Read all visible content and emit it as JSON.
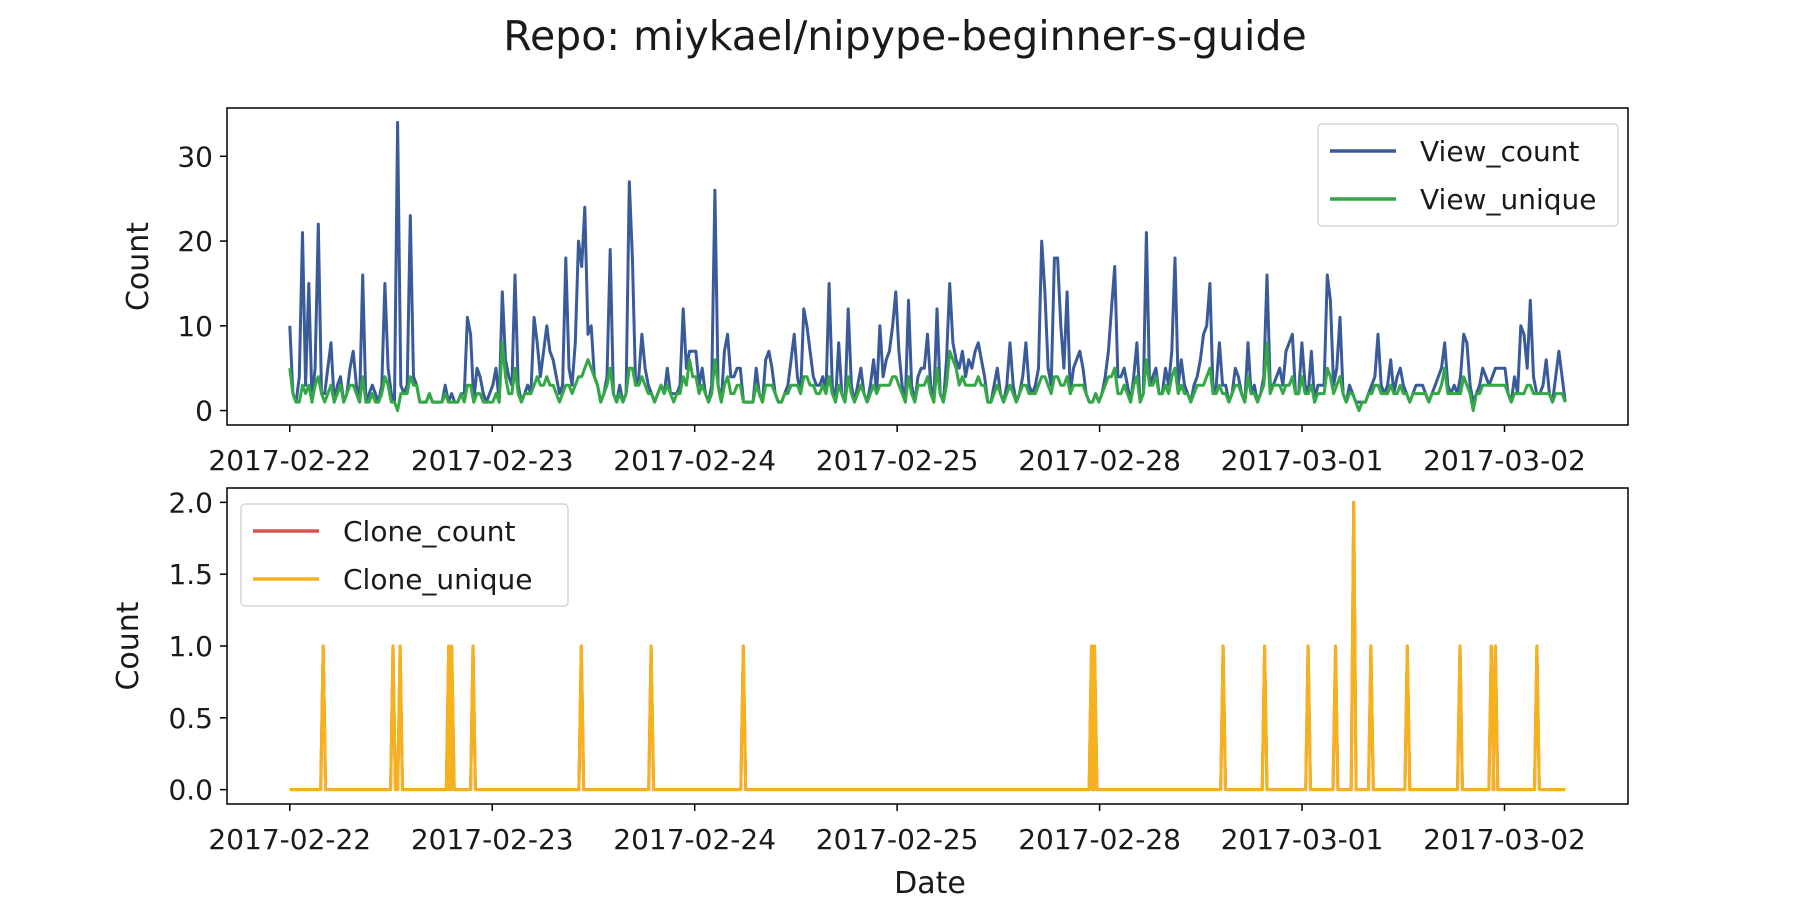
{
  "title": "Repo: miykael/nipype-beginner-s-guide",
  "x_axis": {
    "label": "Date",
    "tick_labels": [
      "2017-02-22",
      "2017-02-23",
      "2017-02-24",
      "2017-02-25",
      "2017-02-28",
      "2017-03-01",
      "2017-03-02"
    ]
  },
  "chart_data": [
    {
      "type": "line",
      "ylabel": "Count",
      "ylim": [
        -1.7,
        35.7
      ],
      "yticks": [
        0,
        10,
        20,
        30
      ],
      "ytick_labels": [
        "0",
        "10",
        "20",
        "30"
      ],
      "x_range": [
        0,
        6.3
      ],
      "xlim": [
        -0.31,
        6.61
      ],
      "legend_position": "upper right",
      "grid": false,
      "series": [
        {
          "name": "View_count",
          "color": "#3a5b9a",
          "values": [
            10,
            2,
            1,
            4,
            21,
            3,
            15,
            1,
            5,
            22,
            2,
            2,
            5,
            8,
            1,
            3,
            4,
            1,
            2,
            5,
            7,
            3,
            1,
            16,
            1,
            2,
            3,
            2,
            1,
            3,
            15,
            5,
            2,
            1,
            34,
            3,
            2,
            3,
            23,
            4,
            3,
            1,
            1,
            1,
            2,
            1,
            1,
            1,
            1,
            3,
            1,
            2,
            1,
            1,
            2,
            2,
            11,
            9,
            1,
            5,
            4,
            2,
            1,
            2,
            3,
            5,
            1,
            14,
            6,
            4,
            3,
            16,
            3,
            1,
            2,
            3,
            2,
            11,
            8,
            4,
            7,
            10,
            7,
            6,
            4,
            2,
            3,
            18,
            5,
            3,
            8,
            20,
            17,
            24,
            9,
            10,
            4,
            3,
            1,
            2,
            4,
            19,
            2,
            1,
            3,
            1,
            2,
            27,
            18,
            3,
            4,
            9,
            5,
            3,
            2,
            1,
            2,
            3,
            2,
            5,
            2,
            2,
            2,
            3,
            12,
            5,
            7,
            7,
            7,
            3,
            5,
            2,
            1,
            3,
            26,
            3,
            1,
            7,
            9,
            4,
            4,
            5,
            5,
            1,
            1,
            1,
            1,
            5,
            2,
            1,
            6,
            7,
            5,
            2,
            1,
            1,
            2,
            3,
            6,
            9,
            4,
            2,
            12,
            10,
            7,
            4,
            3,
            3,
            4,
            2,
            15,
            3,
            1,
            8,
            2,
            1,
            12,
            3,
            1,
            3,
            5,
            2,
            1,
            3,
            6,
            2,
            10,
            4,
            6,
            7,
            10,
            14,
            7,
            3,
            1,
            13,
            3,
            1,
            4,
            5,
            5,
            9,
            3,
            1,
            12,
            2,
            1,
            6,
            15,
            8,
            6,
            5,
            7,
            4,
            6,
            5,
            7,
            8,
            6,
            4,
            1,
            1,
            3,
            5,
            2,
            1,
            3,
            8,
            3,
            1,
            2,
            4,
            8,
            3,
            2,
            3,
            5,
            20,
            14,
            5,
            3,
            18,
            18,
            10,
            5,
            14,
            2,
            5,
            6,
            7,
            5,
            2,
            1,
            1,
            2,
            1,
            2,
            4,
            7,
            12,
            17,
            4,
            4,
            5,
            3,
            1,
            4,
            8,
            1,
            2,
            21,
            3,
            4,
            5,
            2,
            2,
            5,
            3,
            7,
            18,
            3,
            6,
            3,
            2,
            1,
            3,
            4,
            6,
            9,
            10,
            15,
            2,
            3,
            8,
            3,
            3,
            1,
            2,
            5,
            4,
            2,
            1,
            8,
            2,
            3,
            1,
            2,
            4,
            16,
            3,
            3,
            4,
            5,
            3,
            7,
            8,
            9,
            2,
            2,
            8,
            3,
            2,
            7,
            1,
            3,
            3,
            3,
            16,
            13,
            3,
            5,
            11,
            2,
            1,
            3,
            2,
            1,
            1,
            1,
            1,
            2,
            3,
            4,
            9,
            3,
            2,
            3,
            6,
            2,
            4,
            5,
            3,
            2,
            1,
            2,
            3,
            3,
            3,
            2,
            1,
            2,
            3,
            4,
            5,
            8,
            3,
            2,
            3,
            2,
            4,
            9,
            8,
            3,
            1,
            2,
            3,
            5,
            4,
            3,
            4,
            5,
            5,
            5,
            5,
            2,
            1,
            4,
            2,
            10,
            9,
            5,
            13,
            4,
            2,
            2,
            3,
            6,
            2,
            1,
            4,
            7,
            4,
            1
          ]
        },
        {
          "name": "View_unique",
          "color": "#33a845",
          "values": [
            5,
            2,
            1,
            1,
            3,
            2,
            3,
            1,
            3,
            4,
            2,
            1,
            2,
            3,
            1,
            2,
            3,
            1,
            2,
            3,
            3,
            2,
            1,
            4,
            1,
            1,
            2,
            1,
            1,
            2,
            4,
            3,
            1,
            1,
            0,
            2,
            2,
            2,
            4,
            3,
            3,
            1,
            1,
            1,
            2,
            1,
            1,
            1,
            1,
            2,
            1,
            1,
            1,
            1,
            2,
            1,
            3,
            3,
            1,
            2,
            2,
            1,
            1,
            1,
            1,
            2,
            1,
            8,
            4,
            2,
            2,
            5,
            2,
            1,
            2,
            2,
            2,
            3,
            4,
            3,
            3,
            4,
            3,
            3,
            2,
            1,
            2,
            3,
            3,
            2,
            3,
            4,
            4,
            5,
            6,
            5,
            4,
            3,
            1,
            2,
            3,
            5,
            2,
            1,
            2,
            1,
            2,
            5,
            5,
            3,
            3,
            4,
            3,
            2,
            2,
            1,
            2,
            3,
            2,
            3,
            2,
            1,
            2,
            2,
            4,
            3,
            6,
            4,
            4,
            2,
            3,
            2,
            1,
            2,
            6,
            3,
            1,
            3,
            4,
            2,
            2,
            3,
            3,
            1,
            1,
            1,
            1,
            3,
            2,
            1,
            3,
            3,
            3,
            2,
            1,
            1,
            2,
            2,
            3,
            3,
            3,
            2,
            4,
            4,
            3,
            3,
            2,
            2,
            3,
            2,
            4,
            2,
            1,
            3,
            2,
            1,
            4,
            2,
            1,
            2,
            3,
            2,
            1,
            2,
            3,
            2,
            3,
            3,
            3,
            3,
            4,
            4,
            3,
            2,
            1,
            4,
            2,
            1,
            3,
            3,
            3,
            4,
            2,
            1,
            5,
            2,
            1,
            3,
            7,
            6,
            5,
            3,
            4,
            3,
            3,
            3,
            3,
            4,
            3,
            3,
            1,
            1,
            2,
            3,
            2,
            1,
            2,
            3,
            2,
            1,
            2,
            3,
            3,
            2,
            2,
            2,
            3,
            4,
            4,
            3,
            2,
            4,
            4,
            3,
            3,
            4,
            2,
            3,
            3,
            3,
            3,
            2,
            1,
            1,
            2,
            1,
            2,
            3,
            4,
            4,
            5,
            2,
            2,
            3,
            2,
            1,
            3,
            4,
            1,
            2,
            6,
            3,
            3,
            4,
            2,
            2,
            3,
            2,
            4,
            5,
            2,
            3,
            2,
            2,
            1,
            2,
            3,
            3,
            3,
            4,
            5,
            2,
            2,
            3,
            2,
            2,
            1,
            2,
            3,
            3,
            2,
            1,
            4,
            2,
            2,
            1,
            2,
            3,
            8,
            2,
            3,
            3,
            3,
            2,
            3,
            3,
            4,
            2,
            2,
            4,
            2,
            2,
            3,
            1,
            2,
            2,
            2,
            5,
            4,
            2,
            3,
            4,
            2,
            1,
            2,
            2,
            1,
            0,
            1,
            1,
            2,
            2,
            3,
            3,
            2,
            2,
            2,
            3,
            2,
            2,
            3,
            2,
            2,
            1,
            2,
            2,
            2,
            2,
            2,
            1,
            2,
            2,
            2,
            3,
            5,
            2,
            2,
            2,
            2,
            2,
            4,
            3,
            2,
            0,
            2,
            2,
            3,
            3,
            3,
            3,
            3,
            3,
            3,
            3,
            2,
            1,
            2,
            2,
            2,
            2,
            3,
            3,
            2,
            2,
            2,
            2,
            2,
            2,
            1,
            2,
            2,
            2,
            1
          ]
        }
      ]
    },
    {
      "type": "line",
      "ylabel": "Count",
      "ylim": [
        -0.1,
        2.1
      ],
      "yticks": [
        0,
        0.5,
        1,
        1.5,
        2
      ],
      "ytick_labels": [
        "0.0",
        "0.5",
        "1.0",
        "1.5",
        "2.0"
      ],
      "x_range": [
        0,
        6.3
      ],
      "xlim": [
        -0.31,
        6.61
      ],
      "legend_position": "upper left",
      "grid": false,
      "spikes_note": "series are zero except listed spikes",
      "series": [
        {
          "name": "Clone_count",
          "color": "#d9534f",
          "spikes": [
            [
              0.165,
              1
            ],
            [
              0.51,
              1
            ],
            [
              0.545,
              1
            ],
            [
              0.785,
              1
            ],
            [
              0.8,
              1
            ],
            [
              0.905,
              1
            ],
            [
              1.44,
              1
            ],
            [
              1.785,
              1
            ],
            [
              2.24,
              1
            ],
            [
              3.96,
              1
            ],
            [
              3.975,
              1
            ],
            [
              4.61,
              1
            ],
            [
              4.815,
              1
            ],
            [
              5.03,
              1
            ],
            [
              5.165,
              1
            ],
            [
              5.255,
              2
            ],
            [
              5.34,
              1
            ],
            [
              5.52,
              1
            ],
            [
              5.78,
              1
            ],
            [
              5.935,
              1
            ],
            [
              5.955,
              1
            ],
            [
              6.16,
              1
            ]
          ]
        },
        {
          "name": "Clone_unique",
          "color": "#f5b21c",
          "spikes": [
            [
              0.165,
              1
            ],
            [
              0.51,
              1
            ],
            [
              0.545,
              1
            ],
            [
              0.785,
              1
            ],
            [
              0.8,
              1
            ],
            [
              0.905,
              1
            ],
            [
              1.44,
              1
            ],
            [
              1.785,
              1
            ],
            [
              2.24,
              1
            ],
            [
              3.96,
              1
            ],
            [
              3.975,
              1
            ],
            [
              4.61,
              1
            ],
            [
              4.815,
              1
            ],
            [
              5.03,
              1
            ],
            [
              5.165,
              1
            ],
            [
              5.255,
              2
            ],
            [
              5.34,
              1
            ],
            [
              5.52,
              1
            ],
            [
              5.78,
              1
            ],
            [
              5.935,
              1
            ],
            [
              5.955,
              1
            ],
            [
              6.16,
              1
            ]
          ]
        }
      ]
    }
  ]
}
